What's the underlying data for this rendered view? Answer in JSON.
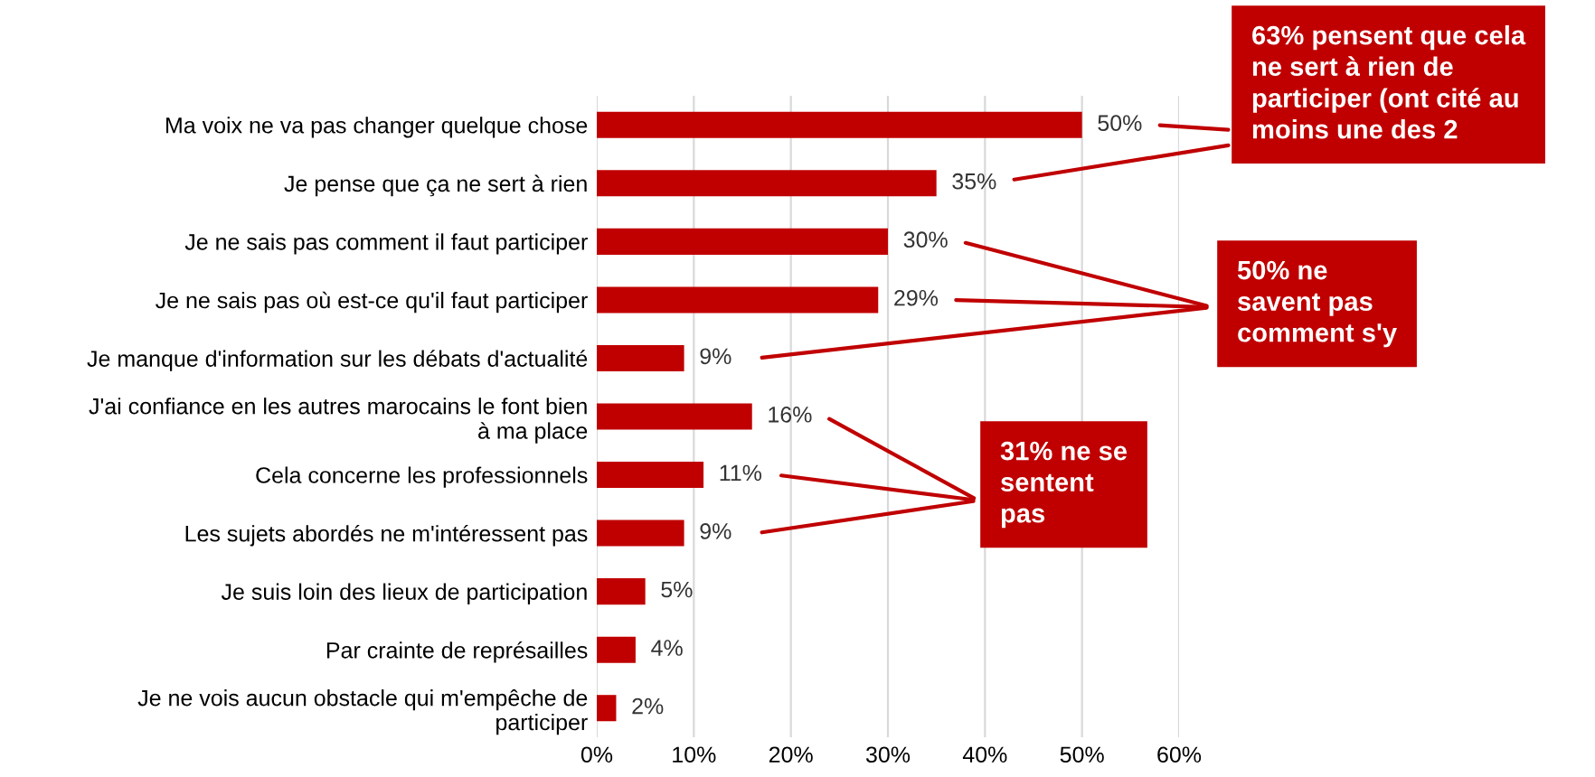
{
  "chart_data": {
    "type": "bar",
    "orientation": "horizontal",
    "categories": [
      "Ma voix ne va pas changer quelque chose",
      "Je pense que ça ne sert à rien",
      "Je ne sais pas comment il faut participer",
      "Je ne sais pas où est-ce qu'il faut participer",
      "Je manque d'information sur les débats d'actualité",
      "J'ai confiance en les autres marocains le font bien\nà ma place",
      "Cela concerne les professionnels",
      "Les sujets abordés ne m'intéressent pas",
      "Je suis loin des lieux de participation",
      "Par crainte de représailles",
      "Je ne vois aucun obstacle qui m'empêche de\nparticiper"
    ],
    "values": [
      50,
      35,
      30,
      29,
      9,
      16,
      11,
      9,
      5,
      4,
      2
    ],
    "value_labels": [
      "50%",
      "35%",
      "30%",
      "29%",
      "9%",
      "16%",
      "11%",
      "9%",
      "5%",
      "4%",
      "2%"
    ],
    "color": "#c00000",
    "xlim": [
      0,
      60
    ],
    "xticks": [
      {
        "value": 0,
        "label": "0%"
      },
      {
        "value": 10,
        "label": "10%"
      },
      {
        "value": 20,
        "label": "20%"
      },
      {
        "value": 30,
        "label": "30%"
      },
      {
        "value": 40,
        "label": "40%"
      },
      {
        "value": 50,
        "label": "50%"
      },
      {
        "value": 60,
        "label": "60%"
      }
    ],
    "grid": "x",
    "legend": false,
    "annotations": [
      "63% pensent que cela\nne sert à rien de\nparticiper (ont cité au\nmoins une des 2",
      "50% ne\nsavent pas\ncomment s'y",
      "31% ne se\nsentent\npas"
    ]
  }
}
